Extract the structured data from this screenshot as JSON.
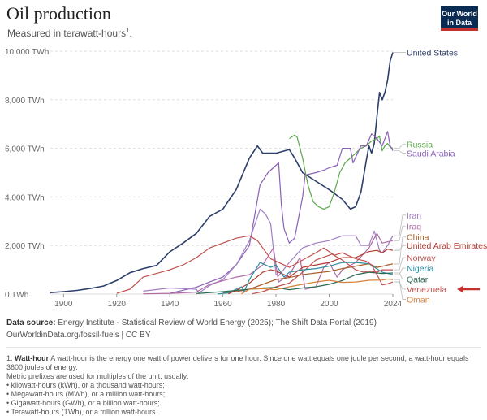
{
  "header": {
    "title": "Oil production",
    "subtitle": "Measured in terawatt-hours",
    "subtitle_note": "1",
    "logo_line1": "Our World",
    "logo_line2": "in Data"
  },
  "chart_data": {
    "type": "line",
    "title": "Oil production",
    "subtitle": "Measured in terawatt-hours",
    "ylabel": "",
    "xlabel": "",
    "xlim": [
      1895,
      2024
    ],
    "ylim": [
      0,
      10000
    ],
    "x_ticks": [
      {
        "value": 1900,
        "label": "1900"
      },
      {
        "value": 1920,
        "label": "1920"
      },
      {
        "value": 1940,
        "label": "1940"
      },
      {
        "value": 1960,
        "label": "1960"
      },
      {
        "value": 1980,
        "label": "1980"
      },
      {
        "value": 2000,
        "label": "2000"
      },
      {
        "value": 2024,
        "label": "2024"
      }
    ],
    "y_ticks": [
      {
        "value": 0,
        "label": "0 TWh"
      },
      {
        "value": 2000,
        "label": "2,000 TWh"
      },
      {
        "value": 4000,
        "label": "4,000 TWh"
      },
      {
        "value": 6000,
        "label": "6,000 TWh"
      },
      {
        "value": 8000,
        "label": "8,000 TWh"
      },
      {
        "value": 10000,
        "label": "10,000 TWh"
      }
    ],
    "grid": "horizontal-dashed",
    "legend": "right-end-labels",
    "series": [
      {
        "name": "United States",
        "color": "#2c3e6b",
        "label_y": 9950,
        "points": [
          [
            1895,
            60
          ],
          [
            1900,
            100
          ],
          [
            1905,
            150
          ],
          [
            1910,
            230
          ],
          [
            1915,
            330
          ],
          [
            1920,
            560
          ],
          [
            1925,
            880
          ],
          [
            1930,
            1050
          ],
          [
            1935,
            1180
          ],
          [
            1940,
            1740
          ],
          [
            1945,
            2100
          ],
          [
            1950,
            2500
          ],
          [
            1955,
            3200
          ],
          [
            1960,
            3500
          ],
          [
            1965,
            4300
          ],
          [
            1970,
            5600
          ],
          [
            1973,
            6100
          ],
          [
            1975,
            5800
          ],
          [
            1980,
            5800
          ],
          [
            1985,
            5950
          ],
          [
            1987,
            5600
          ],
          [
            1990,
            5000
          ],
          [
            1995,
            4650
          ],
          [
            2000,
            4300
          ],
          [
            2005,
            3900
          ],
          [
            2008,
            3500
          ],
          [
            2010,
            3600
          ],
          [
            2012,
            4200
          ],
          [
            2014,
            5500
          ],
          [
            2015,
            6100
          ],
          [
            2016,
            5800
          ],
          [
            2017,
            6200
          ],
          [
            2018,
            7300
          ],
          [
            2019,
            8300
          ],
          [
            2020,
            8000
          ],
          [
            2021,
            8300
          ],
          [
            2022,
            8800
          ],
          [
            2023,
            9600
          ],
          [
            2024,
            9950
          ]
        ]
      },
      {
        "name": "Russia",
        "color": "#5aa84a",
        "label_y": 6170,
        "points": [
          [
            1985,
            6400
          ],
          [
            1987,
            6550
          ],
          [
            1988,
            6450
          ],
          [
            1990,
            5600
          ],
          [
            1992,
            4500
          ],
          [
            1994,
            3800
          ],
          [
            1996,
            3600
          ],
          [
            1998,
            3500
          ],
          [
            2000,
            3600
          ],
          [
            2002,
            4200
          ],
          [
            2004,
            5000
          ],
          [
            2006,
            5400
          ],
          [
            2008,
            5600
          ],
          [
            2010,
            5800
          ],
          [
            2012,
            6000
          ],
          [
            2014,
            6100
          ],
          [
            2016,
            6300
          ],
          [
            2018,
            6400
          ],
          [
            2019,
            6500
          ],
          [
            2020,
            5900
          ],
          [
            2021,
            6100
          ],
          [
            2022,
            6200
          ],
          [
            2023,
            6050
          ],
          [
            2024,
            6000
          ]
        ]
      },
      {
        "name": "Saudi Arabia",
        "color": "#8a5fb8",
        "label_y": 5800,
        "points": [
          [
            1940,
            30
          ],
          [
            1950,
            280
          ],
          [
            1955,
            500
          ],
          [
            1960,
            700
          ],
          [
            1965,
            1200
          ],
          [
            1970,
            2000
          ],
          [
            1974,
            4500
          ],
          [
            1977,
            5000
          ],
          [
            1980,
            5300
          ],
          [
            1981,
            5400
          ],
          [
            1982,
            3700
          ],
          [
            1983,
            2700
          ],
          [
            1985,
            2100
          ],
          [
            1987,
            2300
          ],
          [
            1990,
            4000
          ],
          [
            1991,
            4900
          ],
          [
            1995,
            5000
          ],
          [
            1998,
            5100
          ],
          [
            2000,
            5200
          ],
          [
            2003,
            5300
          ],
          [
            2005,
            6000
          ],
          [
            2008,
            6000
          ],
          [
            2009,
            5400
          ],
          [
            2012,
            6100
          ],
          [
            2014,
            6100
          ],
          [
            2016,
            6600
          ],
          [
            2018,
            6400
          ],
          [
            2020,
            6100
          ],
          [
            2022,
            6700
          ],
          [
            2023,
            6100
          ],
          [
            2024,
            5900
          ]
        ]
      },
      {
        "name": "Iran",
        "color": "#a17fc2",
        "label_y": 3250,
        "points": [
          [
            1930,
            120
          ],
          [
            1940,
            250
          ],
          [
            1950,
            200
          ],
          [
            1951,
            50
          ],
          [
            1955,
            350
          ],
          [
            1960,
            600
          ],
          [
            1965,
            1200
          ],
          [
            1970,
            2200
          ],
          [
            1974,
            3500
          ],
          [
            1976,
            3300
          ],
          [
            1978,
            2900
          ],
          [
            1980,
            800
          ],
          [
            1981,
            750
          ],
          [
            1985,
            1300
          ],
          [
            1990,
            1900
          ],
          [
            1995,
            2100
          ],
          [
            2000,
            2200
          ],
          [
            2005,
            2400
          ],
          [
            2010,
            2400
          ],
          [
            2012,
            2000
          ],
          [
            2015,
            2000
          ],
          [
            2017,
            2600
          ],
          [
            2019,
            1800
          ],
          [
            2020,
            1700
          ],
          [
            2022,
            2000
          ],
          [
            2024,
            2400
          ]
        ]
      },
      {
        "name": "Iraq",
        "color": "#b06aa6",
        "label_y": 2800,
        "points": [
          [
            1930,
            10
          ],
          [
            1940,
            30
          ],
          [
            1950,
            80
          ],
          [
            1955,
            400
          ],
          [
            1960,
            550
          ],
          [
            1965,
            700
          ],
          [
            1970,
            800
          ],
          [
            1975,
            1200
          ],
          [
            1979,
            1900
          ],
          [
            1981,
            500
          ],
          [
            1985,
            800
          ],
          [
            1989,
            1500
          ],
          [
            1991,
            200
          ],
          [
            1995,
            300
          ],
          [
            1998,
            1100
          ],
          [
            2000,
            1300
          ],
          [
            2003,
            700
          ],
          [
            2005,
            1000
          ],
          [
            2010,
            1300
          ],
          [
            2015,
            1900
          ],
          [
            2018,
            2500
          ],
          [
            2020,
            2100
          ],
          [
            2024,
            2200
          ]
        ]
      },
      {
        "name": "China",
        "color": "#a85f2a",
        "label_y": 2350,
        "points": [
          [
            1960,
            50
          ],
          [
            1965,
            100
          ],
          [
            1970,
            200
          ],
          [
            1975,
            400
          ],
          [
            1980,
            600
          ],
          [
            1985,
            680
          ],
          [
            1990,
            800
          ],
          [
            1995,
            870
          ],
          [
            2000,
            930
          ],
          [
            2005,
            1050
          ],
          [
            2010,
            1150
          ],
          [
            2015,
            1250
          ],
          [
            2018,
            1100
          ],
          [
            2020,
            1140
          ],
          [
            2022,
            1200
          ],
          [
            2024,
            1240
          ]
        ]
      },
      {
        "name": "United Arab Emirates",
        "color": "#b23a30",
        "label_y": 2000,
        "points": [
          [
            1962,
            10
          ],
          [
            1965,
            150
          ],
          [
            1970,
            450
          ],
          [
            1975,
            900
          ],
          [
            1978,
            1000
          ],
          [
            1980,
            950
          ],
          [
            1985,
            700
          ],
          [
            1990,
            1100
          ],
          [
            1995,
            1200
          ],
          [
            2000,
            1300
          ],
          [
            2005,
            1500
          ],
          [
            2010,
            1500
          ],
          [
            2015,
            1750
          ],
          [
            2018,
            1800
          ],
          [
            2020,
            1700
          ],
          [
            2022,
            1850
          ],
          [
            2024,
            1800
          ]
        ]
      },
      {
        "name": "Norway",
        "color": "#c0504d",
        "label_y": 1500,
        "points": [
          [
            1971,
            10
          ],
          [
            1975,
            100
          ],
          [
            1980,
            300
          ],
          [
            1985,
            450
          ],
          [
            1990,
            900
          ],
          [
            1995,
            1400
          ],
          [
            2000,
            1600
          ],
          [
            2001,
            1650
          ],
          [
            2005,
            1400
          ],
          [
            2010,
            1000
          ],
          [
            2013,
            900
          ],
          [
            2015,
            950
          ],
          [
            2018,
            900
          ],
          [
            2020,
            1000
          ],
          [
            2024,
            1000
          ]
        ]
      },
      {
        "name": "Nigeria",
        "color": "#2e8ea0",
        "label_y": 1070,
        "points": [
          [
            1958,
            5
          ],
          [
            1962,
            50
          ],
          [
            1967,
            300
          ],
          [
            1968,
            100
          ],
          [
            1970,
            600
          ],
          [
            1974,
            1300
          ],
          [
            1978,
            1100
          ],
          [
            1980,
            1200
          ],
          [
            1983,
            700
          ],
          [
            1985,
            900
          ],
          [
            1990,
            1000
          ],
          [
            1995,
            1050
          ],
          [
            2000,
            1150
          ],
          [
            2005,
            1300
          ],
          [
            2010,
            1300
          ],
          [
            2015,
            1250
          ],
          [
            2020,
            900
          ],
          [
            2024,
            800
          ]
        ]
      },
      {
        "name": "Qatar",
        "color": "#2b6b54",
        "label_y": 620,
        "points": [
          [
            1950,
            20
          ],
          [
            1960,
            100
          ],
          [
            1970,
            200
          ],
          [
            1975,
            250
          ],
          [
            1980,
            270
          ],
          [
            1985,
            180
          ],
          [
            1990,
            250
          ],
          [
            1995,
            300
          ],
          [
            2000,
            400
          ],
          [
            2005,
            560
          ],
          [
            2010,
            800
          ],
          [
            2015,
            900
          ],
          [
            2020,
            850
          ],
          [
            2024,
            870
          ]
        ]
      },
      {
        "name": "Venezuela",
        "color": "#c0504d",
        "label_y": 200,
        "highlight": true,
        "points": [
          [
            1920,
            30
          ],
          [
            1925,
            200
          ],
          [
            1930,
            700
          ],
          [
            1935,
            850
          ],
          [
            1940,
            1000
          ],
          [
            1945,
            1200
          ],
          [
            1950,
            1500
          ],
          [
            1955,
            1900
          ],
          [
            1960,
            2100
          ],
          [
            1965,
            2300
          ],
          [
            1970,
            2400
          ],
          [
            1973,
            2200
          ],
          [
            1978,
            1450
          ],
          [
            1985,
            1100
          ],
          [
            1990,
            1400
          ],
          [
            1995,
            1700
          ],
          [
            1998,
            1900
          ],
          [
            2002,
            1600
          ],
          [
            2005,
            1700
          ],
          [
            2010,
            1450
          ],
          [
            2014,
            1350
          ],
          [
            2016,
            1200
          ],
          [
            2018,
            800
          ],
          [
            2019,
            600
          ],
          [
            2020,
            380
          ],
          [
            2022,
            420
          ],
          [
            2024,
            500
          ]
        ]
      },
      {
        "name": "Oman",
        "color": "#d4823c",
        "label_y": -220,
        "points": [
          [
            1967,
            10
          ],
          [
            1970,
            200
          ],
          [
            1975,
            220
          ],
          [
            1980,
            180
          ],
          [
            1985,
            300
          ],
          [
            1990,
            400
          ],
          [
            1995,
            500
          ],
          [
            2000,
            570
          ],
          [
            2005,
            480
          ],
          [
            2010,
            500
          ],
          [
            2015,
            570
          ],
          [
            2020,
            580
          ],
          [
            2022,
            620
          ],
          [
            2024,
            600
          ]
        ]
      }
    ]
  },
  "source": {
    "label": "Data source:",
    "text": "Energy Institute - Statistical Review of World Energy (2025); The Shift Data Portal (2019)",
    "url": "OurWorldinData.org/fossil-fuels",
    "license": "| CC BY"
  },
  "footnote": {
    "number": "1.",
    "term": "Watt-hour",
    "definition": "A watt-hour is the energy one watt of power delivers for one hour. Since one watt equals one joule per second, a watt-hour equals 3600 joules of energy.",
    "intro": "Metric prefixes are used for multiples of the unit, usually:",
    "items": [
      "kilowatt-hours (kWh), or a thousand watt-hours;",
      "Megawatt-hours (MWh), or a million watt-hours;",
      "Gigawatt-hours (GWh), or a billion watt-hours;",
      "Terawatt-hours (TWh), or a trillion watt-hours."
    ]
  },
  "colors": {
    "highlight_arrow": "#c4302b",
    "grid": "#dddddd",
    "axis_text": "#666666"
  }
}
